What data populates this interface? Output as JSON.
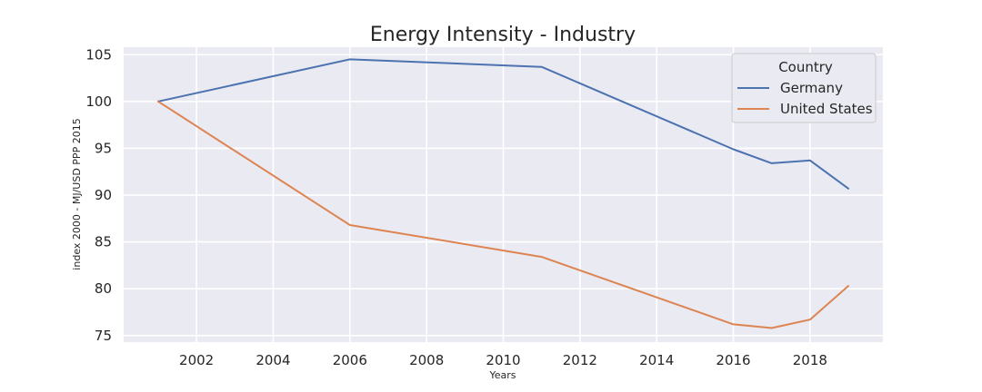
{
  "chart_data": {
    "type": "line",
    "title": "Energy Intensity - Industry",
    "xlabel": "Years",
    "ylabel": "index 2000 - MJ/USD PPP 2015",
    "xlim": [
      2000.1,
      2019.9
    ],
    "ylim": [
      74.3,
      105.8
    ],
    "xticks": [
      2002,
      2004,
      2006,
      2008,
      2010,
      2012,
      2014,
      2016,
      2018
    ],
    "yticks": [
      75,
      80,
      85,
      90,
      95,
      100,
      105
    ],
    "grid": true,
    "legend": {
      "title": "Country",
      "placement": "top-right"
    },
    "series": [
      {
        "name": "Germany",
        "color": "#4c72b0",
        "x": [
          2001,
          2006,
          2011,
          2016,
          2017,
          2018,
          2019
        ],
        "values": [
          100,
          104.5,
          103.7,
          94.9,
          93.4,
          93.7,
          90.7
        ]
      },
      {
        "name": "United States",
        "color": "#dd8452",
        "x": [
          2001,
          2006,
          2011,
          2016,
          2017,
          2018,
          2019
        ],
        "values": [
          100,
          86.8,
          83.4,
          76.2,
          75.8,
          76.7,
          80.3
        ]
      }
    ]
  }
}
